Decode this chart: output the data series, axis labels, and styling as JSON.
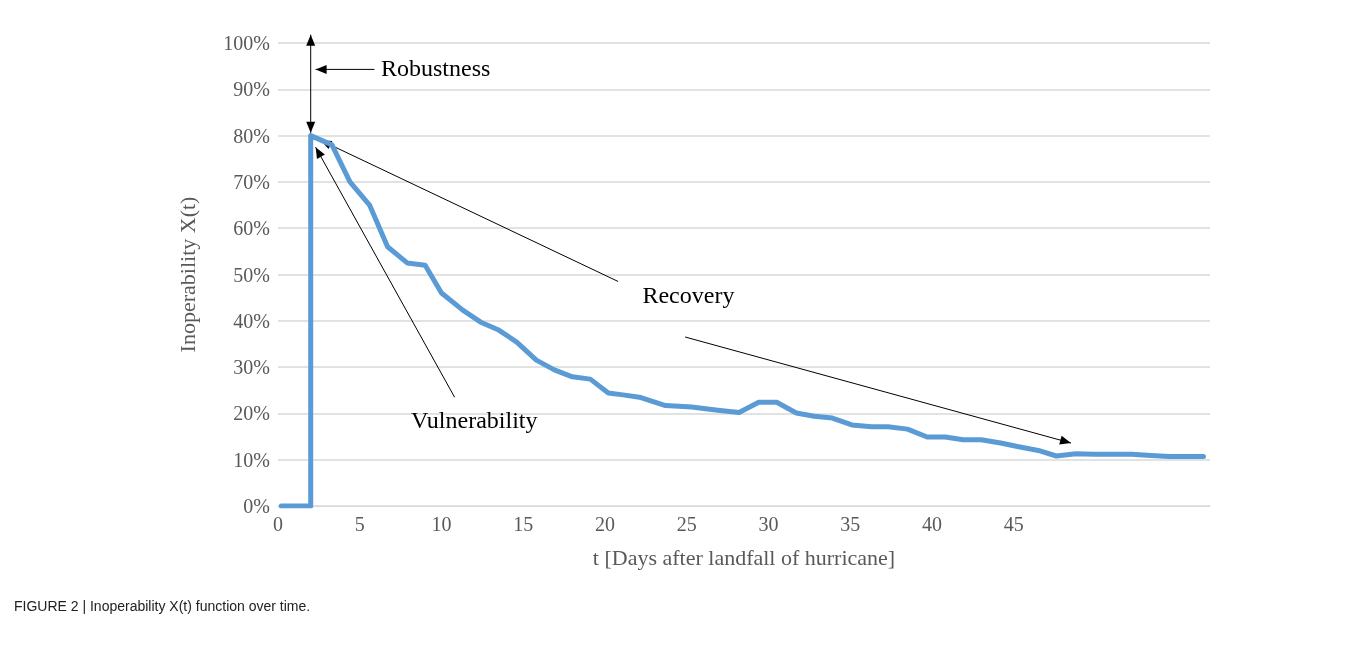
{
  "chart_data": {
    "type": "line",
    "xlabel": "t [Days after landfall of hurricane]",
    "ylabel": "Inoperability X(t)",
    "annotations": [
      "Robustness",
      {
        "text": "Vulnerability",
        "x": 2.3,
        "y": 77.5
      },
      {
        "text": "Recovery",
        "x": 2.6,
        "y": 79
      },
      "FIGURE 2 | Inoperability X(t) function over time."
    ],
    "series": [
      {
        "color": "#5b9bd5",
        "x": [
          0.2,
          2.0,
          2.0,
          3.3,
          4.4,
          5.6,
          6.7,
          7.9,
          9.0,
          10.0,
          11.3,
          12.4,
          13.5,
          14.6,
          15.8,
          16.9,
          18.0,
          19.1,
          20.2,
          21.1,
          22.1,
          23.7,
          25.3,
          26.9,
          28.2,
          29.4,
          30.5,
          31.7,
          32.8,
          33.9,
          35.1,
          36.3,
          37.3,
          38.5,
          39.7,
          40.8,
          41.9,
          43.0,
          44.2,
          45.3,
          46.5,
          47.6,
          48.8,
          49.9,
          51.1,
          52.2,
          53.4,
          54.5,
          55.6,
          56.6
        ],
        "values": [
          0,
          0,
          80,
          78,
          70,
          65,
          56,
          52.5,
          52,
          46,
          42.3,
          39.7,
          38,
          35.4,
          31.5,
          29.4,
          27.9,
          27.4,
          24.4,
          24,
          23.5,
          21.7,
          21.4,
          20.7,
          20.2,
          22.4,
          22.4,
          20.1,
          19.4,
          19,
          17.5,
          17.1,
          17.1,
          16.6,
          14.9,
          14.9,
          14.3,
          14.3,
          13.6,
          12.8,
          12,
          10.8,
          11.3,
          11.2,
          11.2,
          11.2,
          10.9,
          10.7,
          10.7,
          10.7
        ]
      }
    ],
    "xlim": [
      0,
      57
    ],
    "xticks": [
      0,
      5,
      10,
      15,
      20,
      25,
      30,
      35,
      40,
      45
    ],
    "ylim": [
      0,
      100
    ],
    "yticks": [
      {
        "value": 0,
        "label": "0%"
      },
      {
        "value": 10,
        "label": "10%"
      },
      {
        "value": 20,
        "label": "20%"
      },
      {
        "value": 30,
        "label": "30%"
      },
      {
        "value": 40,
        "label": "40%"
      },
      {
        "value": 50,
        "label": "50%"
      },
      {
        "value": 60,
        "label": "60%"
      },
      {
        "value": 70,
        "label": "70%"
      },
      {
        "value": 80,
        "label": "80%"
      },
      {
        "value": 90,
        "label": "90%"
      },
      {
        "value": 100,
        "label": "100%"
      }
    ],
    "grid": "y",
    "marker": "none",
    "line_style": "solid"
  }
}
